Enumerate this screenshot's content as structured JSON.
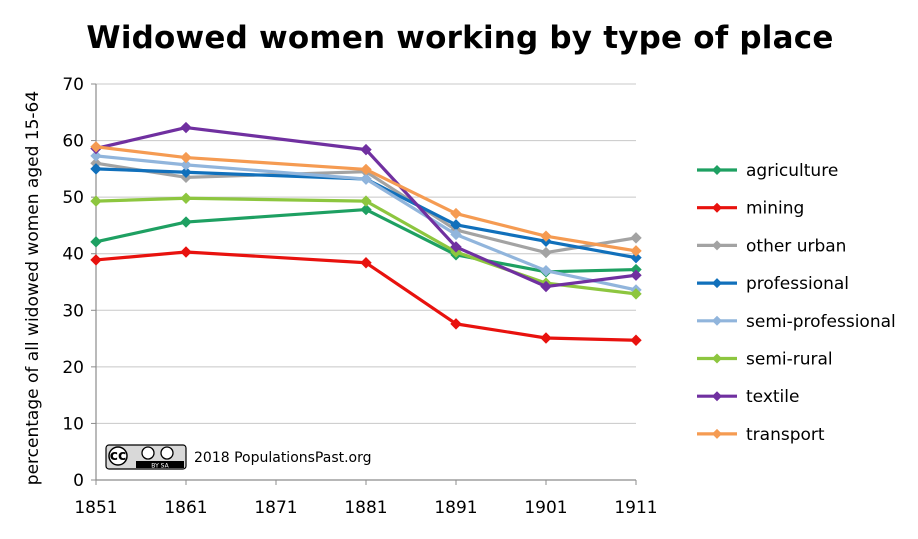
{
  "chart_data": {
    "type": "line",
    "title": "Widowed women working by type of place",
    "xlabel": "",
    "ylabel": "percentage of all widowed women aged 15-64",
    "x": [
      1851,
      1861,
      1881,
      1891,
      1901,
      1911
    ],
    "x_ticks": [
      "1851",
      "1861",
      "1871",
      "1881",
      "1891",
      "1901",
      "1911"
    ],
    "xlim": [
      1851,
      1911
    ],
    "ylim": [
      0,
      70
    ],
    "y_ticks": [
      "0",
      "10",
      "20",
      "30",
      "40",
      "50",
      "60",
      "70"
    ],
    "grid": true,
    "legend_position": "right",
    "series": [
      {
        "name": "agriculture",
        "color": "#1ea062",
        "values": [
          42.1,
          45.6,
          47.8,
          39.8,
          36.8,
          37.2
        ]
      },
      {
        "name": "mining",
        "color": "#e8120e",
        "values": [
          38.9,
          40.3,
          38.4,
          27.6,
          25.1,
          24.7
        ]
      },
      {
        "name": "other urban",
        "color": "#a3a3a3",
        "values": [
          56.0,
          53.5,
          54.5,
          44.2,
          40.2,
          42.8
        ]
      },
      {
        "name": "professional",
        "color": "#1170bb",
        "values": [
          55.0,
          54.4,
          53.2,
          45.1,
          42.2,
          39.3
        ]
      },
      {
        "name": "semi-professional",
        "color": "#91b5dc",
        "values": [
          57.3,
          55.7,
          53.2,
          43.4,
          37.0,
          33.6
        ]
      },
      {
        "name": "semi-rural",
        "color": "#8dc63f",
        "values": [
          49.3,
          49.8,
          49.3,
          40.3,
          34.8,
          32.9
        ]
      },
      {
        "name": "textile",
        "color": "#7030a0",
        "values": [
          58.6,
          62.3,
          58.4,
          41.2,
          34.2,
          36.2
        ]
      },
      {
        "name": "transport",
        "color": "#f59b52",
        "values": [
          58.9,
          57.0,
          54.9,
          47.1,
          43.1,
          40.5
        ]
      }
    ]
  },
  "credit": {
    "text": "2018 PopulationsPast.org",
    "license_badge": "cc-by-sa",
    "license_sub": "BY   SA"
  }
}
